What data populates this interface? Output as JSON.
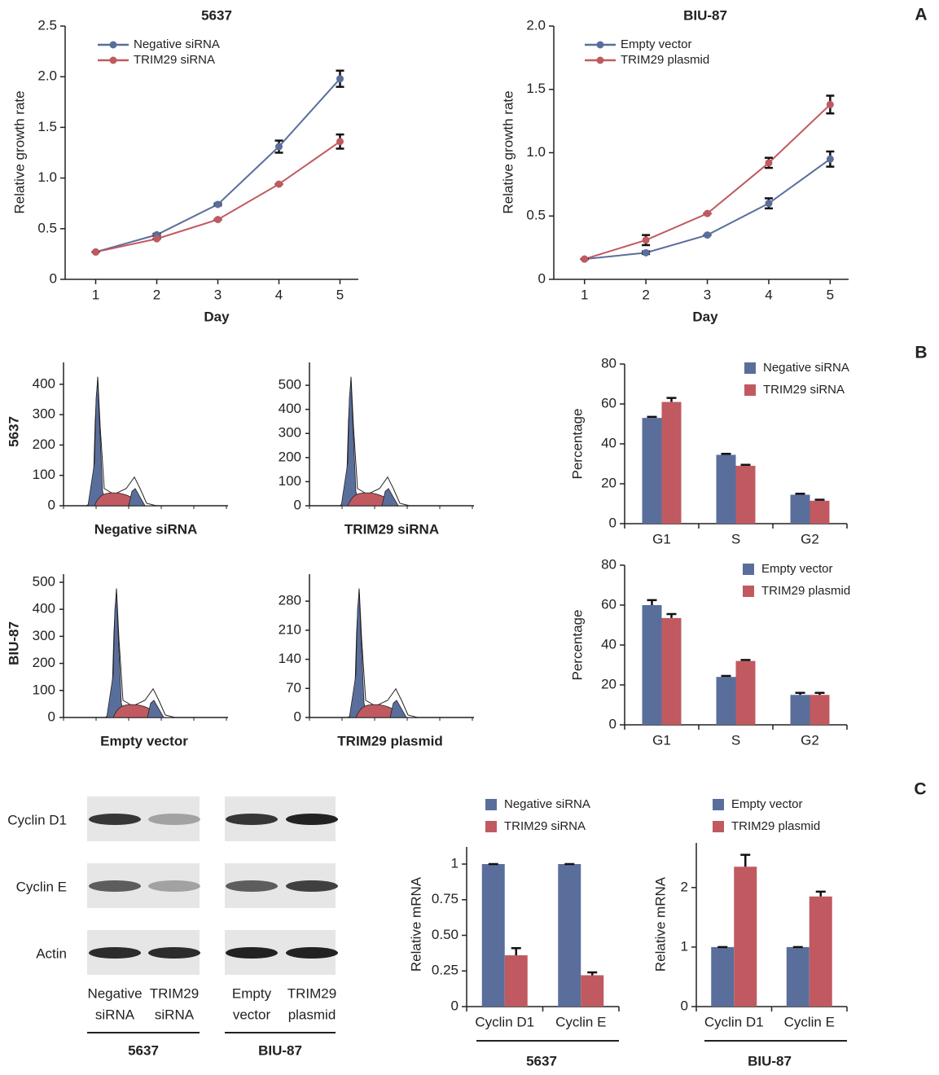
{
  "panel_labels": [
    "A",
    "B",
    "C"
  ],
  "chart_data": [
    {
      "type": "line",
      "title": "5637",
      "xlabel": "Day",
      "ylabel": "Relative growth rate",
      "x": [
        1,
        2,
        3,
        4,
        5
      ],
      "xlim": [
        0.5,
        5.3
      ],
      "xticks": [
        1,
        2,
        3,
        4,
        5
      ],
      "ylim": [
        0,
        2.5
      ],
      "yticks": [
        0,
        0.5,
        {
          "value": 1,
          "label": "1.0"
        },
        1.5,
        {
          "value": 2,
          "label": "2.0"
        },
        2.5
      ],
      "legend": "upper left",
      "series": [
        {
          "name": "Negative siRNA",
          "color": "#5a6e9c",
          "values": [
            0.27,
            0.44,
            0.74,
            1.31,
            1.98
          ],
          "errors": [
            0,
            0.01,
            0.01,
            0.06,
            0.08
          ]
        },
        {
          "name": "TRIM29 siRNA",
          "color": "#c05a60",
          "values": [
            0.27,
            0.4,
            0.59,
            0.94,
            1.36
          ],
          "errors": [
            0,
            0,
            0,
            0,
            0.07
          ]
        }
      ]
    },
    {
      "type": "line",
      "title": "BIU-87",
      "xlabel": "Day",
      "ylabel": "Relative growth rate",
      "x": [
        1,
        2,
        3,
        4,
        5
      ],
      "xlim": [
        0.5,
        5.3
      ],
      "xticks": [
        1,
        2,
        3,
        4,
        5
      ],
      "ylim": [
        0,
        2.0
      ],
      "yticks": [
        0,
        0.5,
        {
          "value": 1,
          "label": "1.0"
        },
        1.5,
        {
          "value": 2,
          "label": "2.0"
        }
      ],
      "legend": "upper left",
      "series": [
        {
          "name": "Empty vector",
          "color": "#5a6e9c",
          "values": [
            0.16,
            0.21,
            0.35,
            0.6,
            0.95
          ],
          "errors": [
            0,
            0.01,
            0,
            0.04,
            0.06
          ]
        },
        {
          "name": "TRIM29 plasmid",
          "color": "#c05a60",
          "values": [
            0.16,
            0.31,
            0.52,
            0.92,
            1.38
          ],
          "errors": [
            0,
            0.04,
            0,
            0.04,
            0.07
          ]
        }
      ]
    },
    {
      "type": "bar",
      "ylabel": "Percentage",
      "categories": [
        "G1",
        "S",
        "G2"
      ],
      "ylim": [
        0,
        80
      ],
      "yticks": [
        0,
        20,
        40,
        60,
        80
      ],
      "legend": "upper right",
      "series": [
        {
          "name": "Negative siRNA",
          "color": "#5a6e9c",
          "values": [
            53,
            34.5,
            14.5
          ],
          "errors": [
            0.5,
            0.5,
            0.5
          ]
        },
        {
          "name": "TRIM29 siRNA",
          "color": "#c05a60",
          "values": [
            61,
            29,
            11.5
          ],
          "errors": [
            2,
            0.5,
            0.5
          ]
        }
      ]
    },
    {
      "type": "bar",
      "ylabel": "Percentage",
      "categories": [
        "G1",
        "S",
        "G2"
      ],
      "ylim": [
        0,
        80
      ],
      "yticks": [
        0,
        20,
        40,
        60,
        80
      ],
      "legend": "upper right",
      "series": [
        {
          "name": "Empty vector",
          "color": "#5a6e9c",
          "values": [
            60,
            24,
            15
          ],
          "errors": [
            2.5,
            0.5,
            1
          ]
        },
        {
          "name": "TRIM29 plasmid",
          "color": "#c05a60",
          "values": [
            53.5,
            32,
            15
          ],
          "errors": [
            2,
            0.5,
            1
          ]
        }
      ]
    },
    {
      "type": "bar",
      "ylabel": "Relative mRNA",
      "xlabel": "5637",
      "categories": [
        "Cyclin D1",
        "Cyclin E"
      ],
      "ylim": [
        0,
        1.12
      ],
      "yticks": [
        0,
        0.25,
        {
          "value": 0.5,
          "label": "0.50"
        },
        0.75,
        1
      ],
      "legend": "upper left",
      "series": [
        {
          "name": "Negative siRNA",
          "color": "#5a6e9c",
          "values": [
            1,
            1
          ],
          "errors": [
            0,
            0
          ]
        },
        {
          "name": "TRIM29 siRNA",
          "color": "#c05a60",
          "values": [
            0.36,
            0.22
          ],
          "errors": [
            0.05,
            0.02
          ]
        }
      ]
    },
    {
      "type": "bar",
      "ylabel": "Relative mRNA",
      "xlabel": "BIU-87",
      "categories": [
        "Cyclin D1",
        "Cyclin E"
      ],
      "ylim": [
        0,
        2.75
      ],
      "yticks": [
        0,
        1,
        2
      ],
      "legend": "upper left",
      "series": [
        {
          "name": "Empty vector",
          "color": "#5a6e9c",
          "values": [
            1,
            1
          ],
          "errors": [
            0,
            0
          ]
        },
        {
          "name": "TRIM29 plasmid",
          "color": "#c05a60",
          "values": [
            2.35,
            1.85
          ],
          "errors": [
            0.2,
            0.08
          ]
        }
      ]
    }
  ],
  "flow_cytometry": {
    "row_labels": [
      "5637",
      "BIU-87"
    ],
    "panels": [
      {
        "label": "Negative siRNA",
        "ylim": [
          0,
          472
        ],
        "yticks": [
          0,
          100,
          200,
          300,
          400
        ]
      },
      {
        "label": "TRIM29 siRNA",
        "ylim": [
          0,
          595
        ],
        "yticks": [
          0,
          100,
          200,
          300,
          400,
          500
        ]
      },
      {
        "label": "Empty vector",
        "ylim": [
          0,
          530
        ],
        "yticks": [
          0,
          100,
          200,
          300,
          400,
          500
        ]
      },
      {
        "label": "TRIM29 plasmid",
        "ylim": [
          0,
          345
        ],
        "yticks": [
          0,
          70,
          140,
          210,
          280
        ]
      }
    ]
  },
  "western_blot": {
    "rows": [
      "Cyclin D1",
      "Cyclin E",
      "Actin"
    ],
    "lanes": [
      [
        "Negative",
        "siRNA"
      ],
      [
        "TRIM29",
        "siRNA"
      ],
      [
        "Empty",
        "vector"
      ],
      [
        "TRIM29",
        "plasmid"
      ]
    ],
    "groups": [
      "5637",
      "BIU-87"
    ]
  }
}
